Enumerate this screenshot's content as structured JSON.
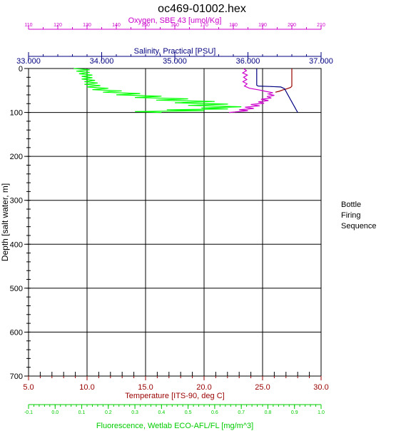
{
  "chart_data": {
    "type": "line",
    "title": "oc469-01002.hex",
    "y_axis": {
      "label": "Depth [salt water, m]",
      "range": [
        0,
        700
      ],
      "inverted": true,
      "ticks": [
        0,
        100,
        200,
        300,
        400,
        500,
        600,
        700
      ],
      "color": "#000000"
    },
    "x_axes": [
      {
        "id": "oxygen",
        "label": "Oxygen, SBE 43 [umol/Kg]",
        "position": "top",
        "color": "#cc00cc",
        "range": [
          110,
          210
        ],
        "ticks": [
          "110",
          "120",
          "130",
          "140",
          "150",
          "160",
          "170",
          "180",
          "190",
          "200",
          "210"
        ]
      },
      {
        "id": "salinity",
        "label": "Salinity, Practical [PSU]",
        "position": "top",
        "color": "#000080",
        "range": [
          33.0,
          37.0
        ],
        "ticks": [
          "33.000",
          "34.000",
          "35.000",
          "36.000",
          "37.000"
        ]
      },
      {
        "id": "temperature",
        "label": "Temperature [ITS-90, deg C]",
        "position": "bottom",
        "color": "#990000",
        "range": [
          5.0,
          30.0
        ],
        "ticks": [
          "5.0",
          "10.0",
          "15.0",
          "20.0",
          "25.0",
          "30.0"
        ]
      },
      {
        "id": "fluorescence",
        "label": "Fluorescence, Wetlab ECO-AFL/FL [mg/m^3]",
        "position": "bottom",
        "color": "#00cc00",
        "range": [
          -0.1,
          1.0
        ],
        "ticks": [
          "-0.1",
          "0.0",
          "0.1",
          "0.2",
          "0.3",
          "0.4",
          "0.5",
          "0.6",
          "0.7",
          "0.8",
          "0.9",
          "1.0"
        ]
      }
    ],
    "grid": true,
    "series": [
      {
        "axis": "temperature",
        "color": "#990000",
        "points": [
          [
            27.5,
            0
          ],
          [
            27.5,
            15
          ],
          [
            27.5,
            30
          ],
          [
            27.5,
            40
          ],
          [
            27.4,
            43
          ],
          [
            27.1,
            46
          ],
          [
            26.7,
            49
          ],
          [
            26.4,
            52
          ],
          [
            26.1,
            54
          ]
        ]
      },
      {
        "axis": "salinity",
        "color": "#000080",
        "points": [
          [
            36.12,
            0
          ],
          [
            36.12,
            20
          ],
          [
            36.12,
            38
          ],
          [
            36.14,
            40
          ],
          [
            36.3,
            41
          ],
          [
            36.45,
            42
          ],
          [
            36.5,
            46
          ],
          [
            36.52,
            52
          ],
          [
            36.54,
            58
          ],
          [
            36.56,
            64
          ],
          [
            36.58,
            70
          ],
          [
            36.6,
            76
          ],
          [
            36.62,
            82
          ],
          [
            36.64,
            88
          ],
          [
            36.66,
            94
          ],
          [
            36.68,
            100
          ]
        ]
      },
      {
        "axis": "oxygen",
        "color": "#cc00cc",
        "points": [
          [
            183.5,
            0
          ],
          [
            184.5,
            5
          ],
          [
            183.2,
            10
          ],
          [
            184.8,
            15
          ],
          [
            183.5,
            20
          ],
          [
            184.6,
            25
          ],
          [
            183.3,
            30
          ],
          [
            184.7,
            35
          ],
          [
            183.8,
            40
          ],
          [
            185.5,
            45
          ],
          [
            189.0,
            49
          ],
          [
            191.0,
            52
          ],
          [
            193.5,
            55
          ],
          [
            192.0,
            58
          ],
          [
            194.0,
            61
          ],
          [
            191.5,
            64
          ],
          [
            193.0,
            67
          ],
          [
            189.5,
            70
          ],
          [
            192.0,
            73
          ],
          [
            188.5,
            76
          ],
          [
            190.5,
            79
          ],
          [
            186.0,
            82
          ],
          [
            189.0,
            85
          ],
          [
            184.0,
            88
          ],
          [
            187.0,
            91
          ],
          [
            182.0,
            94
          ],
          [
            185.0,
            96
          ],
          [
            180.5,
            99
          ],
          [
            178.5,
            100
          ]
        ]
      },
      {
        "axis": "fluorescence",
        "color": "#00ff00",
        "points": [
          [
            0.07,
            0
          ],
          [
            0.13,
            3
          ],
          [
            0.08,
            6
          ],
          [
            0.13,
            9
          ],
          [
            0.09,
            12
          ],
          [
            0.14,
            15
          ],
          [
            0.1,
            18
          ],
          [
            0.14,
            21
          ],
          [
            0.1,
            24
          ],
          [
            0.15,
            27
          ],
          [
            0.11,
            30
          ],
          [
            0.16,
            33
          ],
          [
            0.11,
            36
          ],
          [
            0.17,
            39
          ],
          [
            0.12,
            42
          ],
          [
            0.2,
            45
          ],
          [
            0.14,
            48
          ],
          [
            0.25,
            51
          ],
          [
            0.18,
            54
          ],
          [
            0.32,
            57
          ],
          [
            0.23,
            60
          ],
          [
            0.4,
            63
          ],
          [
            0.3,
            66
          ],
          [
            0.5,
            69
          ],
          [
            0.38,
            72
          ],
          [
            0.6,
            75
          ],
          [
            0.45,
            78
          ],
          [
            0.65,
            81
          ],
          [
            0.5,
            84
          ],
          [
            0.7,
            87
          ],
          [
            0.55,
            90
          ],
          [
            0.65,
            92
          ],
          [
            0.42,
            94
          ],
          [
            0.56,
            96
          ],
          [
            0.3,
            98
          ],
          [
            0.4,
            100
          ]
        ]
      }
    ],
    "legend_text": [
      "Bottle",
      "Firing",
      "Sequence"
    ]
  }
}
